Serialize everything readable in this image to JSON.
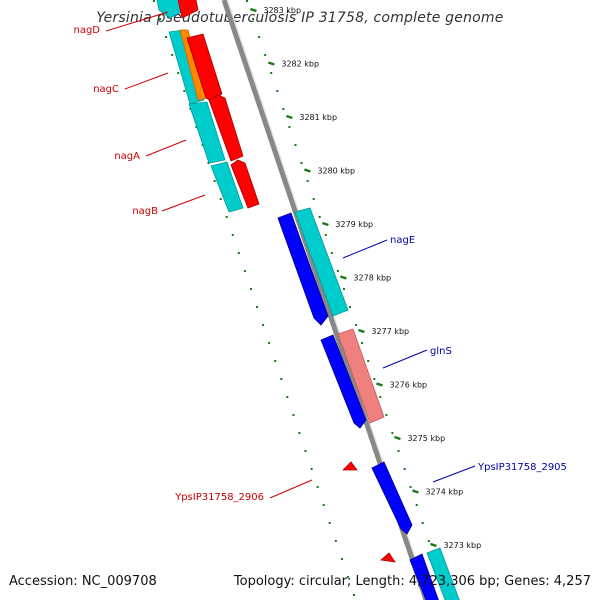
{
  "title": "Yersinia pseudotuberculosis IP 31758, complete genome",
  "footer": {
    "accession": "Accession: NC_009708",
    "summary": "Topology: circular; Length: 4,723,306 bp; Genes: 4,257"
  },
  "colors": {
    "backbone": "#808080",
    "tick": "#1a7a1a",
    "minus_strand_label": "#cc0000",
    "plus_strand_label": "#0000aa",
    "cds_red": "#ff0000",
    "cds_blue": "#0000ff",
    "rna_cyan": "#00cccc",
    "orange": "#ff8800",
    "pink": "#f08080"
  },
  "ticks": [
    "3283 kbp",
    "3282 kbp",
    "3281 kbp",
    "3280 kbp",
    "3279 kbp",
    "3278 kbp",
    "3277 kbp",
    "3276 kbp",
    "3275 kbp",
    "3274 kbp",
    "3273 kbp"
  ],
  "labels": {
    "left": [
      "nagD",
      "nagC",
      "nagA",
      "nagB",
      "YpsIP31758_2906"
    ],
    "right": [
      "nagE",
      "glnS",
      "YpsIP31758_2905"
    ]
  }
}
